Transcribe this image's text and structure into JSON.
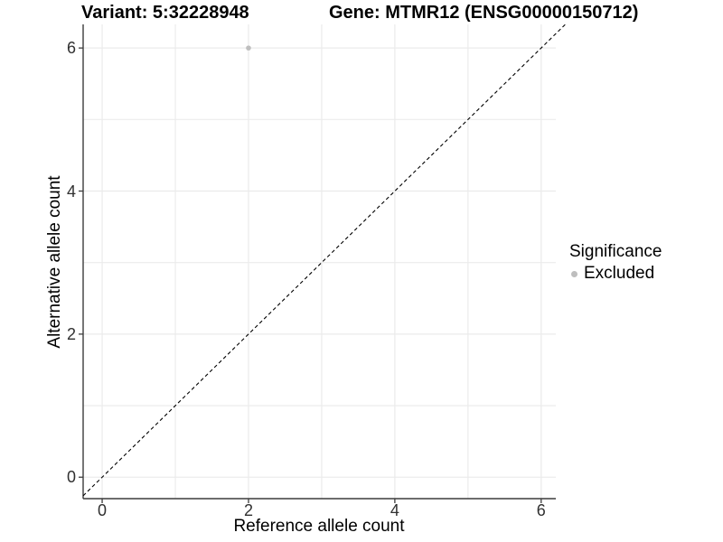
{
  "colors": {
    "grid": "#ebebeb",
    "axis": "#3c3c3c",
    "tick": "#333333",
    "point": "#bebebe",
    "reference_line": "#000000",
    "text": "#000000"
  },
  "chart_data": {
    "type": "scatter",
    "title_left": "Variant: 5:32228948",
    "title_right": "Gene: MTMR12 (ENSG00000150712)",
    "xlabel": "Reference allele count",
    "ylabel": "Alternative allele count",
    "xlim": [
      -0.26,
      6.2
    ],
    "ylim": [
      -0.3,
      6.33
    ],
    "x_ticks": [
      0,
      2,
      4,
      6
    ],
    "y_ticks": [
      0,
      2,
      4,
      6
    ],
    "grid_x": [
      0,
      1,
      2,
      3,
      4,
      5,
      6
    ],
    "grid_y": [
      0,
      1,
      2,
      3,
      4,
      5,
      6
    ],
    "grid": true,
    "series": [
      {
        "name": "Excluded",
        "color": "#bebebe",
        "points": [
          {
            "x": 2,
            "y": 6
          }
        ]
      }
    ],
    "reference_line": {
      "slope": 1,
      "intercept": 0,
      "style": "dashed",
      "color": "#000000"
    },
    "legend": {
      "title": "Significance",
      "position": "right",
      "items": [
        {
          "label": "Excluded",
          "color": "#bebebe"
        }
      ]
    }
  }
}
